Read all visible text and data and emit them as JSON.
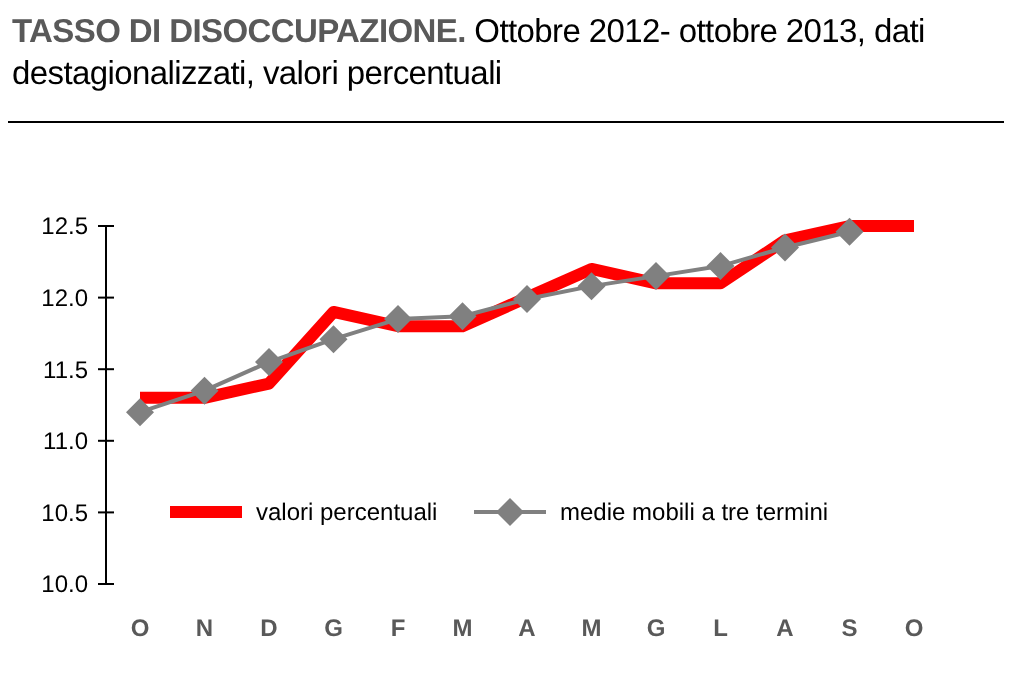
{
  "chart_data": {
    "type": "line",
    "title": "TASSO DI DISOCCUPAZIONE.",
    "subtitle": "Ottobre 2012- ottobre 2013, dati destagionalizzati, valori percentuali",
    "categories": [
      "O",
      "N",
      "D",
      "G",
      "F",
      "M",
      "A",
      "M",
      "G",
      "L",
      "A",
      "S",
      "O"
    ],
    "series": [
      {
        "name": "valori percentuali",
        "color": "#ff0000",
        "marker": "none",
        "values": [
          11.3,
          11.3,
          11.4,
          11.9,
          11.8,
          11.8,
          12.0,
          12.2,
          12.1,
          12.1,
          12.4,
          12.5,
          12.5
        ]
      },
      {
        "name": "medie mobili a tre termini",
        "color": "#808080",
        "marker": "diamond",
        "values": [
          11.2,
          11.35,
          11.55,
          11.71,
          11.85,
          11.87,
          11.99,
          12.08,
          12.15,
          12.22,
          12.35,
          12.46,
          null
        ]
      }
    ],
    "ylim": [
      10,
      12.5
    ],
    "yticks": [
      {
        "value": 10,
        "label": "10.0"
      },
      {
        "value": 10.5,
        "label": "10.5"
      },
      {
        "value": 11,
        "label": "11.0"
      },
      {
        "value": 11.5,
        "label": "11.5"
      },
      {
        "value": 12,
        "label": "12.0"
      },
      {
        "value": 12.5,
        "label": "12.5"
      }
    ],
    "grid": false,
    "legend": "bottom"
  }
}
